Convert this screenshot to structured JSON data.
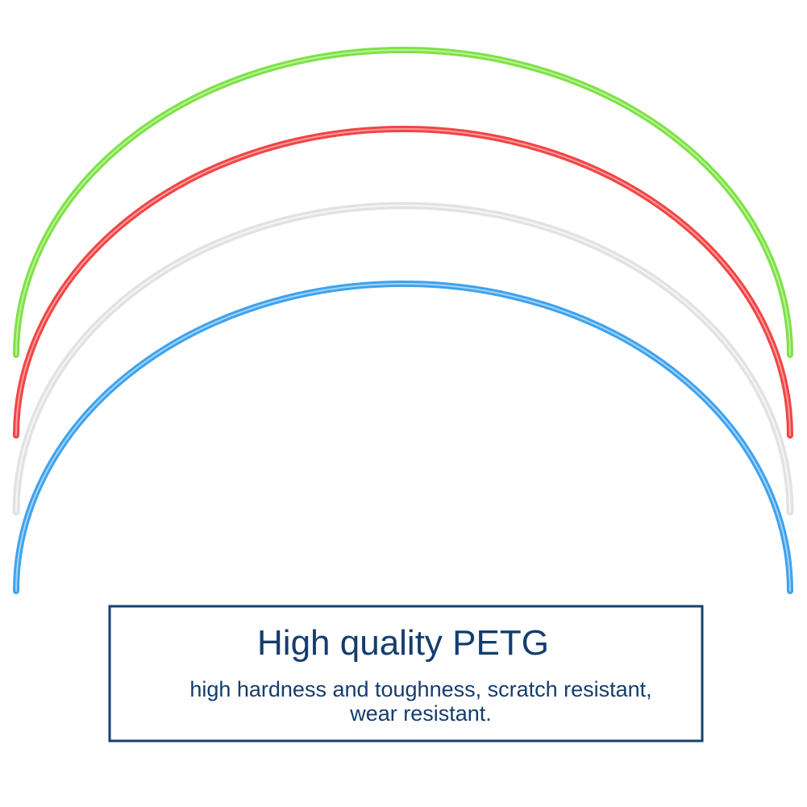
{
  "caption": {
    "title": "High quality PETG",
    "lines": [
      "high hardness and toughness, scratch resistant,",
      "wear resistant."
    ]
  }
}
